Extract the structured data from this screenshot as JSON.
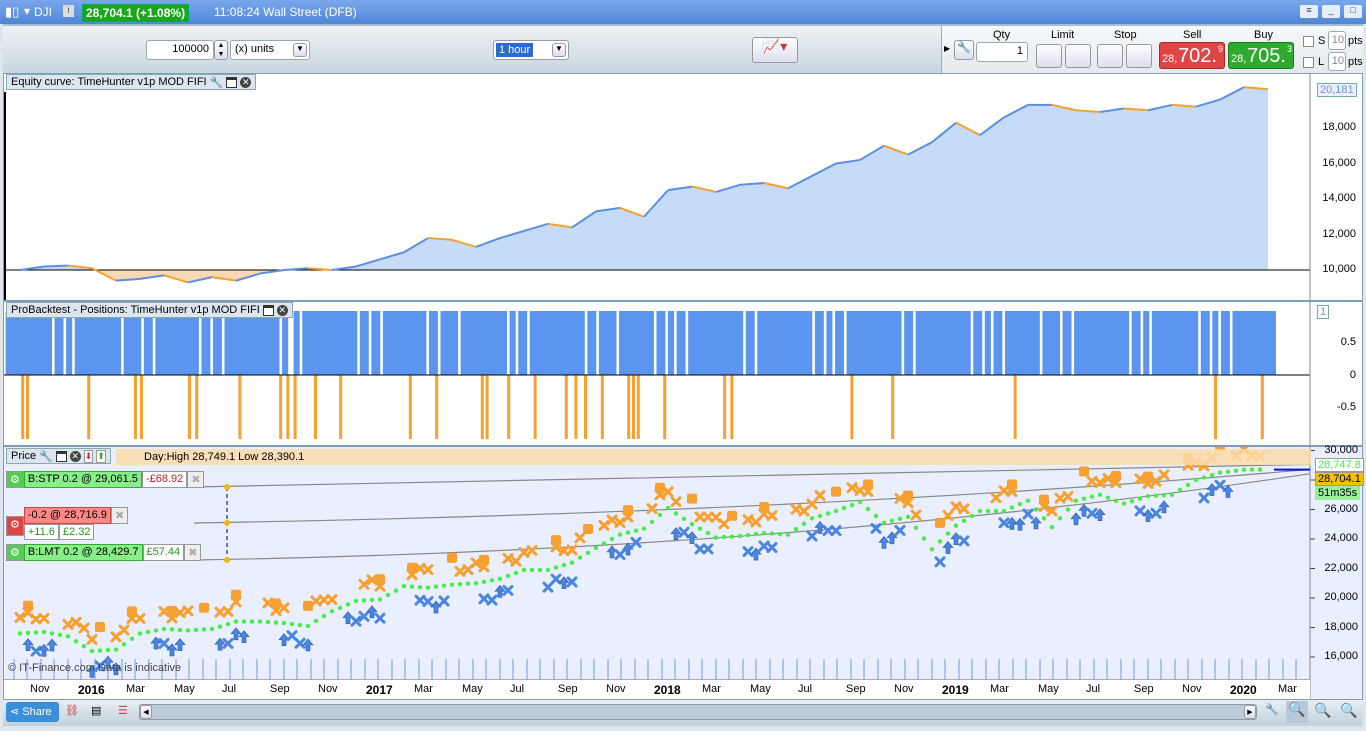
{
  "titlebar": {
    "symbol": "DJI",
    "price_change": "28,704.1 (+1.08%)",
    "time_market": "11:08:24 Wall Street (DFB)"
  },
  "toolbar": {
    "size_value": "100000",
    "size_unit": "(x) units",
    "timeframe": "1 hour",
    "qty_label": "Qty",
    "qty_value": "1",
    "limit_label": "Limit",
    "stop_label": "Stop",
    "sell_label": "Sell",
    "buy_label": "Buy",
    "sell_prefix": "28,",
    "sell_big": "702.",
    "sell_sup": "9",
    "buy_prefix": "28,",
    "buy_big": "705.",
    "buy_sup": "3",
    "s_label": "S",
    "l_label": "L",
    "s_pts": "10",
    "l_pts": "10",
    "pts": "pts"
  },
  "equity_panel": {
    "title": "Equity curve: TimeHunter v1p MOD FIFI",
    "last_value": "20,181",
    "yticks": [
      "18,000",
      "16,000",
      "14,000",
      "12,000",
      "10,000"
    ]
  },
  "positions_panel": {
    "title": "ProBacktest - Positions: TimeHunter v1p MOD FIFI",
    "last_value": "1",
    "yticks": [
      "0.5",
      "0",
      "-0.5"
    ]
  },
  "price_panel": {
    "title": "Price",
    "day_info": "Day:High 28,749.1  Low 28,390.1",
    "yticks": [
      "30,000",
      "26,000",
      "24,000",
      "22,000",
      "20,000",
      "18,000",
      "16,000"
    ],
    "stop_order": {
      "label": "B:STP  0.2 @ 29,061.5",
      "pnl": "-£68.92"
    },
    "position": {
      "label": "-0.2 @ 28,716.9",
      "points": "+11.6",
      "pnl": "£2.32"
    },
    "limit_order": {
      "label": "B:LMT  0.2 @ 28,429.7",
      "pnl": "£57.44"
    },
    "high_tag": "28,747.8",
    "last_tag": "28,704.1",
    "countdown": "51m35s",
    "copyright": "© IT-Finance.com  Data is indicative"
  },
  "xaxis": [
    {
      "m": 1,
      "label": "Nov"
    },
    {
      "m": 3,
      "label": "2016",
      "bold": true
    },
    {
      "m": 5,
      "label": "Mar"
    },
    {
      "m": 7,
      "label": "May"
    },
    {
      "m": 9,
      "label": "Jul"
    },
    {
      "m": 11,
      "label": "Sep"
    },
    {
      "m": 13,
      "label": "Nov"
    },
    {
      "m": 15,
      "label": "2017",
      "bold": true
    },
    {
      "m": 17,
      "label": "Mar"
    },
    {
      "m": 19,
      "label": "May"
    },
    {
      "m": 21,
      "label": "Jul"
    },
    {
      "m": 23,
      "label": "Sep"
    },
    {
      "m": 25,
      "label": "Nov"
    },
    {
      "m": 27,
      "label": "2018",
      "bold": true
    },
    {
      "m": 29,
      "label": "Mar"
    },
    {
      "m": 31,
      "label": "May"
    },
    {
      "m": 33,
      "label": "Jul"
    },
    {
      "m": 35,
      "label": "Sep"
    },
    {
      "m": 37,
      "label": "Nov"
    },
    {
      "m": 39,
      "label": "2019",
      "bold": true
    },
    {
      "m": 41,
      "label": "Mar"
    },
    {
      "m": 43,
      "label": "May"
    },
    {
      "m": 45,
      "label": "Jul"
    },
    {
      "m": 47,
      "label": "Sep"
    },
    {
      "m": 49,
      "label": "Nov"
    },
    {
      "m": 51,
      "label": "2020",
      "bold": true
    },
    {
      "m": 53,
      "label": "Mar"
    }
  ],
  "bottombar": {
    "share": "Share"
  },
  "chart_data": [
    {
      "type": "area",
      "title": "Equity curve",
      "x_unit": "months since Oct 2015",
      "ylim": [
        8500,
        21000
      ],
      "baseline": 10000,
      "values": [
        10000,
        10200,
        10250,
        10100,
        9400,
        9500,
        9700,
        9300,
        9600,
        9400,
        9800,
        10000,
        10100,
        10000,
        10200,
        10600,
        11000,
        11800,
        11700,
        11300,
        11800,
        12200,
        12600,
        12400,
        13300,
        13500,
        13000,
        14500,
        14700,
        14400,
        14800,
        14900,
        14600,
        15300,
        16000,
        16200,
        17000,
        16500,
        17200,
        18300,
        17600,
        18600,
        19300,
        19300,
        19000,
        18900,
        19100,
        19000,
        19300,
        19200,
        19600,
        20300,
        20181
      ],
      "colors": {
        "above": "#c6dbf7",
        "below": "#f9d9b4",
        "line_up": "#5b8fe0",
        "line_down": "#f7a030"
      }
    },
    {
      "type": "bar",
      "title": "Positions",
      "ylim": [
        -1,
        1
      ],
      "long_range": [
        -0.6,
        52.2
      ],
      "short_periods": [
        0.05,
        0.25,
        2.8,
        4.75,
        5.0,
        7.0,
        7.3,
        9.1,
        10.8,
        11.1,
        11.4,
        12.25,
        13.3,
        16.2,
        17.3,
        19.2,
        19.4,
        20.3,
        21.4,
        22.7,
        23.1,
        23.5,
        24.2,
        25.3,
        25.5,
        25.7,
        26.8,
        29.3,
        29.6,
        34.6,
        36.3,
        41.4,
        49.75,
        51.7
      ],
      "colors": {
        "long": "#5b95f0",
        "short": "#f7a030"
      }
    },
    {
      "type": "scatter",
      "title": "Price",
      "ylim": [
        15500,
        30500
      ],
      "values": [
        17600,
        17700,
        17400,
        16400,
        16500,
        17600,
        17900,
        17800,
        17900,
        18400,
        18400,
        18300,
        18100,
        19100,
        19800,
        19900,
        20800,
        20700,
        20900,
        21000,
        21300,
        21900,
        21900,
        22400,
        23400,
        24300,
        24700,
        26100,
        25000,
        24100,
        24200,
        24400,
        24300,
        25400,
        25900,
        26500,
        25100,
        25500,
        23300,
        24900,
        25900,
        25900,
        26600,
        24800,
        26600,
        27000,
        26400,
        26900,
        27000,
        28000,
        28500,
        28700,
        28704
      ],
      "colors": {
        "sell_signal": "#f7a030",
        "buy_signal": "#4a86e0",
        "average": "#44ee44"
      }
    }
  ]
}
